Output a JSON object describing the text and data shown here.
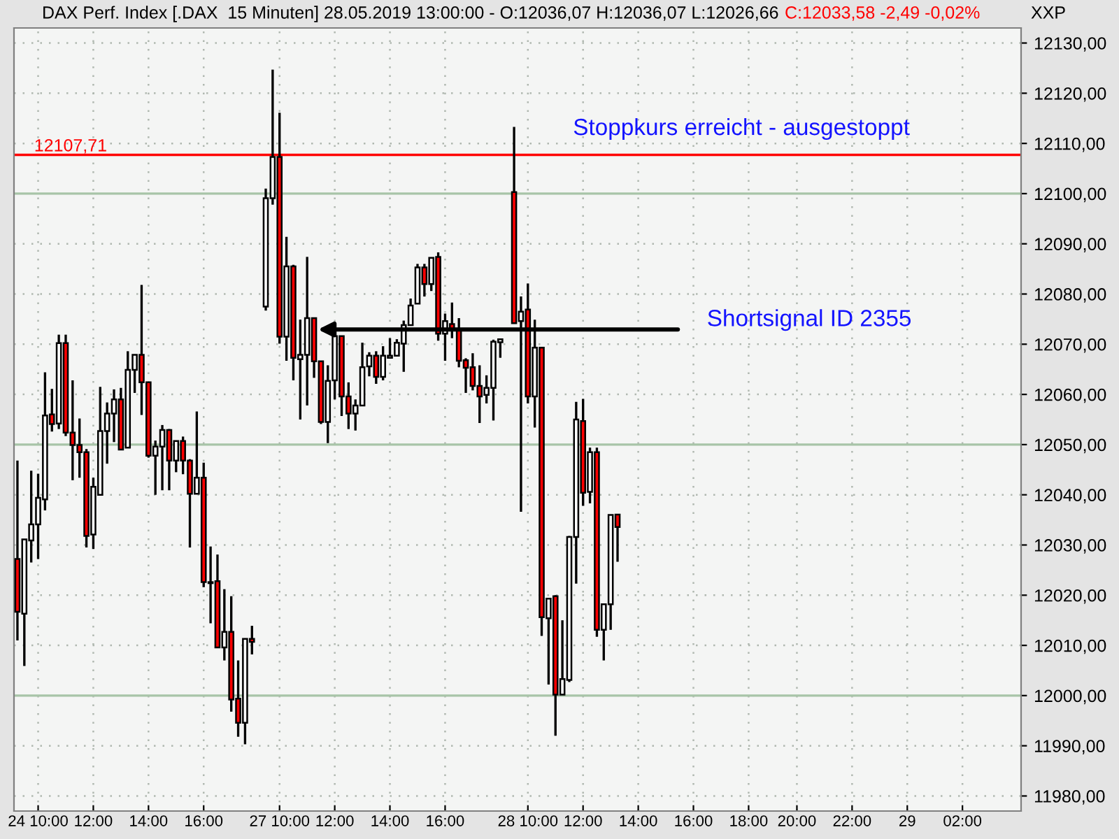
{
  "chart_data": {
    "type": "candlestick",
    "title": "DAX Perf. Index [.DAX  15 Minuten] 28.05.2019 13:00:00 - O:12036,07 H:12036,07 L:12026,66",
    "subtitle": "C:12033,58 -2,49 -0,02%",
    "ylabel": "XXP",
    "categories": [
      null,
      null,
      null,
      "24 10:00",
      null,
      null,
      null,
      null,
      null,
      null,
      null,
      "12:00",
      null,
      null,
      null,
      null,
      null,
      null,
      null,
      "14:00",
      null,
      null,
      null,
      null,
      null,
      null,
      null,
      "16:00",
      null,
      null,
      null,
      null,
      null,
      null,
      null,
      null,
      null,
      null,
      "27 10:00",
      null,
      null,
      null,
      null,
      null,
      null,
      null,
      "12:00",
      null,
      null,
      null,
      null,
      null,
      null,
      null,
      "14:00",
      null,
      null,
      null,
      null,
      null,
      null,
      null,
      "16:00",
      null,
      null,
      null,
      null,
      null,
      null,
      null,
      null,
      null,
      null,
      null,
      "28 10:00",
      null,
      null,
      null,
      null,
      null,
      null,
      null,
      "12:00",
      null,
      null,
      null,
      null,
      null,
      null,
      null,
      "14:00",
      null,
      null,
      null,
      null,
      null,
      null,
      null,
      "16:00",
      null,
      null,
      null,
      null,
      null,
      null,
      null,
      "18:00",
      null,
      null,
      null,
      null,
      null,
      null,
      "20:00",
      null,
      null,
      null,
      null,
      null,
      null,
      null,
      "22:00",
      null,
      null,
      null,
      null,
      null,
      null,
      null,
      "29",
      null,
      null,
      null,
      null,
      null,
      null,
      null,
      "02:00",
      null,
      null,
      null,
      null,
      null,
      null,
      null,
      null
    ],
    "ohlc": [
      [
        12027.2,
        12046.8,
        12011.0,
        12016.7
      ],
      [
        12016.3,
        12031.1,
        12005.9,
        12031.1
      ],
      [
        12030.9,
        12044.8,
        12026.5,
        12034.1
      ],
      [
        12034.1,
        12044.2,
        12027.2,
        12039.4
      ],
      [
        12039.1,
        12064.4,
        12036.9,
        12055.8
      ],
      [
        12056.0,
        12061.1,
        12052.6,
        12054.1
      ],
      [
        12054.2,
        12071.9,
        12053.1,
        12070.2
      ],
      [
        12070.2,
        12071.9,
        12051.7,
        12052.4
      ],
      [
        12052.4,
        12062.8,
        12042.9,
        12049.9
      ],
      [
        12049.9,
        12055.2,
        12043.4,
        12048.5
      ],
      [
        12048.5,
        12049.1,
        12029.5,
        12031.8
      ],
      [
        12032.1,
        12043.4,
        12029.2,
        12041.6
      ],
      [
        12040.0,
        12061.5,
        12040.0,
        12052.7
      ],
      [
        12052.7,
        12058.4,
        12046.2,
        12056.2
      ],
      [
        12056.2,
        12061.0,
        12050.5,
        12059.0
      ],
      [
        12059.0,
        12061.3,
        12049.0,
        12049.0
      ],
      [
        12049.4,
        12068.6,
        12049.4,
        12064.9
      ],
      [
        12064.9,
        12067.9,
        12060.3,
        12067.9
      ],
      [
        12067.9,
        12081.8,
        12055.9,
        12062.4
      ],
      [
        12062.4,
        12062.4,
        12047.4,
        12047.8
      ],
      [
        12047.8,
        12050.8,
        12040.0,
        12049.6
      ],
      [
        12049.6,
        12053.9,
        12040.9,
        12052.9
      ],
      [
        12052.9,
        12053.1,
        12040.9,
        12046.8
      ],
      [
        12046.8,
        12050.7,
        12044.5,
        12050.7
      ],
      [
        12050.7,
        12051.6,
        12044.1,
        12046.8
      ],
      [
        12046.8,
        12047.1,
        12029.5,
        12040.2
      ],
      [
        12040.2,
        12056.6,
        12040.2,
        12043.4
      ],
      [
        12043.4,
        12046.4,
        12021.6,
        12022.6
      ],
      [
        12022.6,
        12029.7,
        12014.4,
        12022.4
      ],
      [
        12022.8,
        12028.1,
        12009.6,
        12009.6
      ],
      [
        12009.6,
        12021.2,
        12007.0,
        12012.7
      ],
      [
        12012.7,
        12019.8,
        11996.8,
        11999.2
      ],
      [
        11999.4,
        12007.0,
        11991.8,
        11994.6
      ],
      [
        11994.6,
        12011.3,
        11990.3,
        12011.3
      ],
      [
        12011.3,
        12013.9,
        12008.2,
        12010.7
      ],
      null,
      [
        12077.5,
        12101.0,
        12076.7,
        12099.1
      ],
      [
        12099.1,
        12124.7,
        12097.8,
        12107.3
      ],
      [
        12107.3,
        12116.1,
        12070.1,
        12071.5
      ],
      [
        12071.5,
        12091.4,
        12066.7,
        12085.5
      ],
      [
        12085.5,
        12085.8,
        12062.8,
        12067.3
      ],
      [
        12067.0,
        12074.9,
        12055.0,
        12067.9
      ],
      [
        12067.9,
        12087.4,
        12057.8,
        12075.2
      ],
      [
        12075.2,
        12075.2,
        12063.3,
        12066.6
      ],
      [
        12066.6,
        12066.6,
        12054.1,
        12054.5
      ],
      [
        12054.5,
        12065.8,
        12050.3,
        12062.7
      ],
      [
        12062.8,
        12073.3,
        12059.0,
        12071.6
      ],
      [
        12071.6,
        12071.6,
        12055.7,
        12059.6
      ],
      [
        12059.6,
        12062.4,
        12053.1,
        12056.2
      ],
      [
        12056.2,
        12059.0,
        12052.8,
        12057.8
      ],
      [
        12057.8,
        12070.3,
        12057.8,
        12065.4
      ],
      [
        12065.6,
        12068.4,
        12063.6,
        12067.7
      ],
      [
        12067.7,
        12068.6,
        12062.1,
        12063.5
      ],
      [
        12063.5,
        12069.6,
        12062.8,
        12067.7
      ],
      [
        12067.3,
        12071.2,
        12067.3,
        12067.7
      ],
      [
        12067.7,
        12071.0,
        12067.7,
        12070.3
      ],
      [
        12070.1,
        12074.7,
        12064.5,
        12073.8
      ],
      [
        12073.8,
        12079.1,
        12073.8,
        12077.7
      ],
      [
        12078.1,
        12086.0,
        12078.1,
        12085.3
      ],
      [
        12085.3,
        12086.0,
        12079.5,
        12082.0
      ],
      [
        12082.0,
        12087.2,
        12080.6,
        12087.2
      ],
      [
        12087.4,
        12088.3,
        12070.7,
        12072.1
      ],
      [
        12072.1,
        12076.1,
        12066.7,
        12074.6
      ],
      [
        12074.0,
        12078.3,
        12071.2,
        12072.8
      ],
      [
        12072.8,
        12075.2,
        12065.4,
        12066.7
      ],
      [
        12066.8,
        12067.2,
        12060.3,
        12065.3
      ],
      [
        12065.4,
        12068.2,
        12060.8,
        12061.7
      ],
      [
        12061.7,
        12065.8,
        12054.3,
        12059.6
      ],
      [
        12059.9,
        12063.8,
        12058.2,
        12061.3
      ],
      [
        12061.3,
        12070.9,
        12054.8,
        12070.5
      ],
      [
        12070.4,
        12071.0,
        12067.3,
        12071.0
      ],
      null,
      [
        12100.3,
        12113.3,
        12074.2,
        12074.2
      ],
      [
        12074.6,
        12079.5,
        12036.6,
        12076.5
      ],
      [
        12076.9,
        12082.1,
        12058.2,
        12059.6
      ],
      [
        12059.6,
        12074.9,
        12053.4,
        12069.3
      ],
      [
        12069.3,
        12069.3,
        12011.9,
        12015.6
      ],
      [
        12015.4,
        12019.3,
        12002.2,
        12019.3
      ],
      [
        12019.8,
        12020.0,
        11992.0,
        12000.2
      ],
      [
        12000.2,
        12015.0,
        12000.2,
        12003.3
      ],
      [
        12003.1,
        12031.8,
        12002.7,
        12031.6
      ],
      [
        12031.6,
        12058.5,
        12022.3,
        12055.0
      ],
      [
        12054.7,
        12059.1,
        12037.8,
        12040.4
      ],
      [
        12040.6,
        12049.4,
        12038.3,
        12048.5
      ],
      [
        12048.5,
        12049.4,
        12011.7,
        12013.1
      ],
      [
        12013.1,
        12018.2,
        12007.0,
        12018.2
      ],
      [
        12018.2,
        12036.0,
        12013.1,
        12036.0
      ],
      [
        12036.07,
        12036.07,
        12026.66,
        12033.58
      ],
      null,
      null,
      null,
      null,
      null,
      null,
      null,
      null,
      null,
      null,
      null,
      null,
      null,
      null,
      null,
      null,
      null,
      null,
      null,
      null,
      null,
      null,
      null,
      null,
      null,
      null,
      null,
      null,
      null,
      null,
      null,
      null,
      null,
      null,
      null,
      null,
      null,
      null,
      null,
      null,
      null,
      null,
      null,
      null,
      null,
      null,
      null,
      null,
      null,
      null,
      null,
      null,
      null,
      null,
      null,
      null,
      null,
      null
    ],
    "colors": [
      "#ff0000",
      "#ffffff",
      "#ffffff",
      "#ffffff",
      "#ffffff",
      "#ff0000",
      "#ffffff",
      "#ff0000",
      "#ff0000",
      "#ff0000",
      "#ff0000",
      "#ffffff",
      "#ffffff",
      "#ffffff",
      "#ffffff",
      "#ff0000",
      "#ffffff",
      "#ffffff",
      "#ff0000",
      "#ff0000",
      "#ffffff",
      "#ffffff",
      "#ff0000",
      "#ffffff",
      "#ff0000",
      "#ff0000",
      "#ffffff",
      "#ff0000",
      "#ff0000",
      "#ff0000",
      "#ffffff",
      "#ff0000",
      "#ff0000",
      "#ffffff",
      "#ff0000",
      null,
      "#ffffff",
      "#ffffff",
      "#ff0000",
      "#ffffff",
      "#ff0000",
      "#ffffff",
      "#ffffff",
      "#ff0000",
      "#ff0000",
      "#ffffff",
      "#ffffff",
      "#ff0000",
      "#ff0000",
      "#ffffff",
      "#ffffff",
      "#ffffff",
      "#ff0000",
      "#ffffff",
      "#ffffff",
      "#ffffff",
      "#ffffff",
      "#ffffff",
      "#ffffff",
      "#ff0000",
      "#ffffff",
      "#ff0000",
      "#ffffff",
      "#ff0000",
      "#ff0000",
      "#ff0000",
      "#ff0000",
      "#ff0000",
      "#ffffff",
      "#ffffff",
      "#ffffff",
      null,
      "#ff0000",
      "#ffffff",
      "#ff0000",
      "#ffffff",
      "#ff0000",
      "#ffffff",
      "#ff0000",
      "#ffffff",
      "#ffffff",
      "#ffffff",
      "#ff0000",
      "#ffffff",
      "#ff0000",
      "#ffffff",
      "#ffffff",
      "#ff0000",
      null,
      null,
      null,
      null,
      null,
      null,
      null,
      null,
      null,
      null,
      null,
      null,
      null,
      null,
      null,
      null,
      null,
      null,
      null,
      null,
      null,
      null,
      null,
      null,
      null,
      null,
      null,
      null,
      null,
      null,
      null,
      null,
      null,
      null,
      null,
      null,
      null,
      null,
      null,
      null,
      null,
      null,
      null,
      null,
      null,
      null,
      null,
      null,
      null,
      null,
      null,
      null,
      null,
      null,
      null,
      null,
      null,
      null
    ],
    "ylim": [
      11977,
      12133
    ],
    "yticks": [
      {
        "value": 11980,
        "label": "11980,00"
      },
      {
        "value": 11990,
        "label": "11990,00"
      },
      {
        "value": 12000,
        "label": "12000,00"
      },
      {
        "value": 12010,
        "label": "12010,00"
      },
      {
        "value": 12020,
        "label": "12020,00"
      },
      {
        "value": 12030,
        "label": "12030,00"
      },
      {
        "value": 12040,
        "label": "12040,00"
      },
      {
        "value": 12050,
        "label": "12050,00"
      },
      {
        "value": 12060,
        "label": "12060,00"
      },
      {
        "value": 12070,
        "label": "12070,00"
      },
      {
        "value": 12080,
        "label": "12080,00"
      },
      {
        "value": 12090,
        "label": "12090,00"
      },
      {
        "value": 12100,
        "label": "12100,00"
      },
      {
        "value": 12110,
        "label": "12110,00"
      },
      {
        "value": 12120,
        "label": "12120,00"
      },
      {
        "value": 12130,
        "label": "12130,00"
      }
    ],
    "grid": true,
    "ref_lines": [
      {
        "axis": "y",
        "value": 12107.71,
        "label": "12107,71",
        "color": "#ff0000"
      }
    ],
    "annotations": [
      "Stoppkurs erreicht - ausgestoppt",
      "Shortsignal ID 2355"
    ]
  }
}
